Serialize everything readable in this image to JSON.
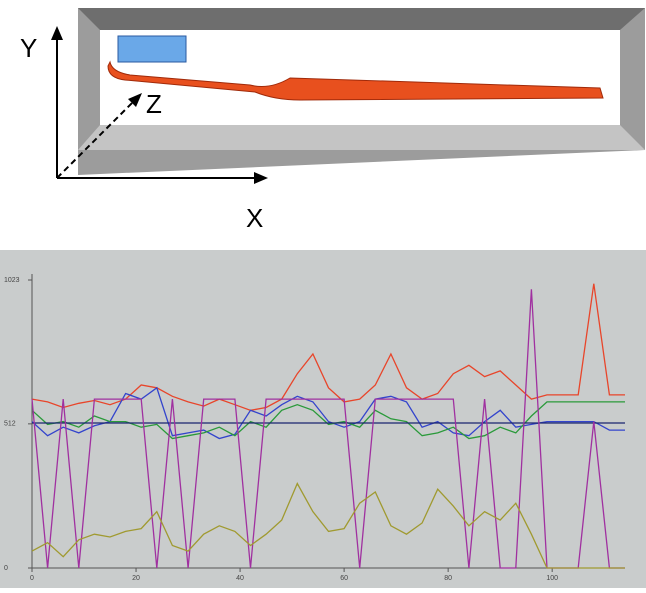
{
  "diagram": {
    "axis_labels": {
      "y": "Y",
      "z": "Z",
      "x": "X"
    }
  },
  "chart_data": {
    "type": "line",
    "x": [
      0,
      3,
      6,
      9,
      12,
      15,
      18,
      21,
      24,
      27,
      30,
      33,
      36,
      39,
      42,
      45,
      48,
      51,
      54,
      57,
      60,
      63,
      66,
      69,
      72,
      75,
      78,
      81,
      84,
      87,
      90,
      93,
      96,
      99,
      102,
      105,
      108,
      111,
      114
    ],
    "series": [
      {
        "color": "#e8452a",
        "values": [
          600,
          590,
          570,
          585,
          595,
          580,
          600,
          650,
          640,
          610,
          590,
          575,
          600,
          580,
          560,
          570,
          600,
          690,
          760,
          640,
          590,
          600,
          650,
          760,
          640,
          600,
          620,
          690,
          720,
          680,
          700,
          650,
          600,
          615,
          615,
          615,
          1010,
          615,
          615
        ]
      },
      {
        "color": "#3344cc",
        "values": [
          520,
          470,
          500,
          480,
          505,
          520,
          620,
          600,
          640,
          470,
          480,
          490,
          460,
          475,
          560,
          540,
          580,
          610,
          590,
          520,
          500,
          520,
          600,
          610,
          590,
          500,
          520,
          480,
          470,
          520,
          560,
          500,
          510,
          520,
          520,
          520,
          520,
          490,
          490
        ]
      },
      {
        "color": "#2a9a3a",
        "values": [
          560,
          510,
          520,
          500,
          540,
          520,
          520,
          500,
          510,
          460,
          470,
          480,
          500,
          470,
          520,
          500,
          560,
          580,
          560,
          510,
          520,
          500,
          560,
          530,
          520,
          470,
          480,
          500,
          460,
          470,
          500,
          480,
          540,
          590,
          590,
          590,
          590,
          590,
          590
        ]
      },
      {
        "color": "#1a2470",
        "values": [
          515,
          515,
          515,
          515,
          515,
          515,
          515,
          515,
          515,
          515,
          515,
          515,
          515,
          515,
          515,
          515,
          515,
          515,
          515,
          515,
          515,
          515,
          515,
          515,
          515,
          515,
          515,
          515,
          515,
          515,
          515,
          515,
          515,
          515,
          515,
          515,
          515,
          515,
          515
        ]
      },
      {
        "color": "#a030a0",
        "values": [
          600,
          0,
          600,
          0,
          600,
          600,
          600,
          600,
          0,
          600,
          0,
          600,
          600,
          600,
          0,
          600,
          600,
          600,
          600,
          600,
          600,
          0,
          600,
          600,
          600,
          600,
          600,
          600,
          0,
          600,
          0,
          0,
          990,
          0,
          0,
          0,
          520,
          0,
          0
        ]
      },
      {
        "color": "#a09a30",
        "values": [
          60,
          90,
          40,
          100,
          120,
          110,
          130,
          140,
          200,
          80,
          60,
          120,
          150,
          130,
          80,
          120,
          170,
          300,
          200,
          130,
          140,
          230,
          270,
          150,
          120,
          160,
          280,
          220,
          150,
          200,
          170,
          230,
          120,
          0,
          0,
          0,
          0,
          0,
          0
        ]
      }
    ],
    "xlim": [
      0,
      114
    ],
    "xticks": [
      0,
      20,
      40,
      60,
      80,
      100
    ],
    "ylim": [
      0,
      1023
    ],
    "yticks": [
      0,
      512,
      1023
    ]
  }
}
